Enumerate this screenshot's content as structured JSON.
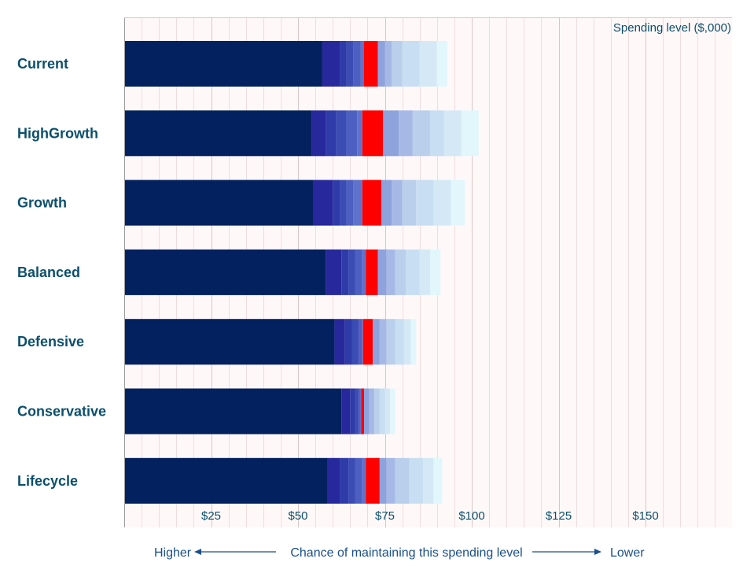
{
  "chart_data": {
    "type": "bar",
    "stacked": true,
    "orientation": "horizontal",
    "x_axis_title": "Spending level ($,000)",
    "xlim": [
      0,
      175
    ],
    "x_ticks": [
      {
        "value": 25,
        "label": "$25"
      },
      {
        "value": 50,
        "label": "$50"
      },
      {
        "value": 75,
        "label": "$75"
      },
      {
        "value": 100,
        "label": "$100"
      },
      {
        "value": 125,
        "label": "$125"
      },
      {
        "value": 150,
        "label": "$150"
      }
    ],
    "minor_grid_step": 5,
    "grid": true,
    "categories": [
      "Current",
      "HighGrowth",
      "Growth",
      "Balanced",
      "Defensive",
      "Conservative",
      "Lifecycle"
    ],
    "segment_colors": [
      "#03215e",
      "#27289c",
      "#2f3ba8",
      "#3c4cb5",
      "#4d5fc1",
      "#5f72cc",
      "#ff0000",
      "#8ea2dc",
      "#a6b9e6",
      "#b9cfec",
      "#c8def2",
      "#d4e9f5",
      "#e2f7fb"
    ],
    "highlight_color": "#ff0000",
    "cumulative_bounds": [
      [
        57,
        62,
        64,
        66,
        68,
        69,
        73,
        75,
        77,
        80,
        85,
        90,
        93
      ],
      [
        54,
        58,
        61,
        64,
        67,
        68.5,
        74.5,
        79,
        83,
        88,
        92,
        97,
        102
      ],
      [
        54.5,
        60,
        62,
        64,
        66,
        68.5,
        74,
        77,
        80,
        84,
        89,
        94,
        98
      ],
      [
        58,
        62.5,
        64.5,
        66.5,
        68.5,
        69.5,
        73,
        75.5,
        78,
        81,
        85,
        88,
        91
      ],
      [
        60.5,
        63.5,
        65.5,
        67.5,
        68.5,
        68.7,
        71.5,
        73.5,
        75.5,
        78,
        80.5,
        82.5,
        84
      ],
      [
        62.5,
        65,
        66.5,
        67.5,
        68,
        68.2,
        69,
        70.5,
        72,
        73.5,
        75,
        76.5,
        78
      ],
      [
        58.5,
        62,
        64.5,
        66.5,
        68.5,
        69.5,
        73.5,
        75.5,
        78,
        82,
        86,
        89,
        91.5
      ]
    ],
    "footer": {
      "left": "Higher",
      "center": "Chance of maintaining this spending level",
      "right": "Lower"
    }
  }
}
